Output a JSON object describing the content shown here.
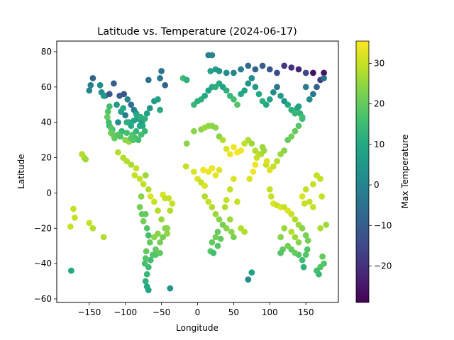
{
  "chart_data": {
    "type": "scatter",
    "title": "Latitude vs. Temperature (2024-06-17)",
    "xlabel": "Longitude",
    "ylabel": "Latitude",
    "xlim": [
      -195,
      195
    ],
    "ylim": [
      -62,
      86
    ],
    "xticks": [
      -150,
      -100,
      -50,
      0,
      50,
      100,
      150
    ],
    "yticks": [
      -60,
      -40,
      -20,
      0,
      20,
      40,
      60,
      80
    ],
    "colorbar": {
      "label": "Max Temperature",
      "colormap": "viridis",
      "min": -29,
      "max": 35.5,
      "ticks": [
        -20,
        -10,
        0,
        10,
        20,
        30
      ]
    },
    "grid": false,
    "legend": "none",
    "points": [
      [
        -145,
        65,
        -8
      ],
      [
        -148,
        61,
        -2
      ],
      [
        -150,
        58,
        0
      ],
      [
        -135,
        61,
        2
      ],
      [
        -133,
        57,
        3
      ],
      [
        -128,
        55,
        -5
      ],
      [
        -122,
        56,
        -12
      ],
      [
        -116,
        62,
        -10
      ],
      [
        -108,
        55,
        -10
      ],
      [
        -102,
        56,
        -12
      ],
      [
        -97,
        53,
        0
      ],
      [
        -92,
        50,
        -5
      ],
      [
        -88,
        47,
        -2
      ],
      [
        -85,
        45,
        5
      ],
      [
        -82,
        42,
        8
      ],
      [
        -95,
        40,
        10
      ],
      [
        -100,
        44,
        -3
      ],
      [
        -110,
        40,
        2
      ],
      [
        -118,
        36,
        15
      ],
      [
        -122,
        38,
        12
      ],
      [
        -125,
        43,
        20
      ],
      [
        -120,
        34,
        22
      ],
      [
        -115,
        31,
        20
      ],
      [
        -107,
        32,
        18
      ],
      [
        -100,
        30,
        24
      ],
      [
        -95,
        29,
        25
      ],
      [
        -90,
        33,
        18
      ],
      [
        -85,
        35,
        14
      ],
      [
        -80,
        38,
        10
      ],
      [
        -77,
        40,
        6
      ],
      [
        -73,
        42,
        12
      ],
      [
        -70,
        45,
        8
      ],
      [
        -66,
        48,
        5
      ],
      [
        -60,
        52,
        6
      ],
      [
        -55,
        53,
        8
      ],
      [
        -52,
        47,
        10
      ],
      [
        -68,
        64,
        -5
      ],
      [
        -52,
        65,
        -3
      ],
      [
        -45,
        61,
        -8
      ],
      [
        -50,
        69,
        -4
      ],
      [
        -160,
        22,
        28
      ],
      [
        -157,
        20,
        28
      ],
      [
        -155,
        19,
        26
      ],
      [
        -110,
        23,
        28
      ],
      [
        -103,
        20,
        28
      ],
      [
        -98,
        18,
        28
      ],
      [
        -92,
        16,
        27
      ],
      [
        -85,
        14,
        30
      ],
      [
        -87,
        10,
        30
      ],
      [
        -80,
        8,
        30
      ],
      [
        -75,
        5,
        29
      ],
      [
        -72,
        10,
        26
      ],
      [
        -68,
        2,
        28
      ],
      [
        -65,
        -2,
        32
      ],
      [
        -60,
        -5,
        30
      ],
      [
        -55,
        -10,
        28
      ],
      [
        -48,
        -1,
        32
      ],
      [
        -50,
        -15,
        26
      ],
      [
        -45,
        -20,
        24
      ],
      [
        -42,
        -23,
        25
      ],
      [
        -48,
        -25,
        22
      ],
      [
        -52,
        -28,
        22
      ],
      [
        -58,
        -32,
        20
      ],
      [
        -62,
        -35,
        18
      ],
      [
        -65,
        -38,
        16
      ],
      [
        -68,
        -42,
        15
      ],
      [
        -70,
        -46,
        14
      ],
      [
        -72,
        -50,
        12
      ],
      [
        -70,
        -53,
        10
      ],
      [
        -68,
        -55,
        9
      ],
      [
        -72,
        -12,
        20
      ],
      [
        -75,
        -16,
        22
      ],
      [
        -70,
        -20,
        18
      ],
      [
        -68,
        -24,
        16
      ],
      [
        -66,
        -28,
        20
      ],
      [
        -71,
        -33,
        20
      ],
      [
        -72,
        -37,
        18
      ],
      [
        -73,
        -40,
        17
      ],
      [
        -38,
        -54,
        4
      ],
      [
        -175,
        -44,
        10
      ],
      [
        -172,
        -9,
        30
      ],
      [
        -170,
        -14,
        30
      ],
      [
        -176,
        -19,
        30
      ],
      [
        -150,
        -17,
        30
      ],
      [
        -145,
        -20,
        28
      ],
      [
        -130,
        -25,
        28
      ],
      [
        -15,
        28,
        24
      ],
      [
        -16,
        15,
        30
      ],
      [
        -5,
        12,
        32
      ],
      [
        0,
        8,
        32
      ],
      [
        5,
        6,
        30
      ],
      [
        10,
        4,
        32
      ],
      [
        8,
        13,
        34
      ],
      [
        15,
        12,
        34
      ],
      [
        20,
        14,
        34
      ],
      [
        25,
        10,
        33
      ],
      [
        30,
        13,
        32
      ],
      [
        -5,
        35,
        24
      ],
      [
        5,
        36,
        24
      ],
      [
        10,
        37,
        26
      ],
      [
        15,
        38,
        25
      ],
      [
        20,
        38,
        24
      ],
      [
        25,
        37,
        24
      ],
      [
        30,
        32,
        24
      ],
      [
        35,
        30,
        28
      ],
      [
        40,
        25,
        32
      ],
      [
        45,
        22,
        34
      ],
      [
        50,
        26,
        34
      ],
      [
        55,
        23,
        35
      ],
      [
        60,
        24,
        34
      ],
      [
        65,
        28,
        30
      ],
      [
        70,
        30,
        28
      ],
      [
        75,
        28,
        26
      ],
      [
        80,
        24,
        28
      ],
      [
        85,
        22,
        30
      ],
      [
        90,
        26,
        26
      ],
      [
        95,
        16,
        30
      ],
      [
        100,
        13,
        32
      ],
      [
        105,
        15,
        30
      ],
      [
        110,
        18,
        28
      ],
      [
        115,
        22,
        26
      ],
      [
        120,
        24,
        24
      ],
      [
        125,
        30,
        20
      ],
      [
        130,
        32,
        22
      ],
      [
        135,
        35,
        20
      ],
      [
        140,
        38,
        18
      ],
      [
        145,
        42,
        14
      ],
      [
        142,
        45,
        12
      ],
      [
        138,
        48,
        10
      ],
      [
        -5,
        50,
        14
      ],
      [
        0,
        52,
        12
      ],
      [
        5,
        53,
        12
      ],
      [
        10,
        55,
        10
      ],
      [
        15,
        58,
        8
      ],
      [
        20,
        60,
        10
      ],
      [
        25,
        60,
        12
      ],
      [
        30,
        62,
        10
      ],
      [
        35,
        60,
        8
      ],
      [
        40,
        58,
        12
      ],
      [
        45,
        55,
        14
      ],
      [
        50,
        53,
        16
      ],
      [
        55,
        50,
        18
      ],
      [
        60,
        56,
        10
      ],
      [
        65,
        58,
        8
      ],
      [
        70,
        62,
        5
      ],
      [
        75,
        65,
        2
      ],
      [
        80,
        60,
        6
      ],
      [
        85,
        56,
        10
      ],
      [
        90,
        52,
        12
      ],
      [
        95,
        50,
        10
      ],
      [
        100,
        53,
        8
      ],
      [
        105,
        57,
        2
      ],
      [
        110,
        60,
        -4
      ],
      [
        115,
        55,
        6
      ],
      [
        120,
        52,
        4
      ],
      [
        125,
        50,
        10
      ],
      [
        130,
        47,
        12
      ],
      [
        135,
        45,
        14
      ],
      [
        140,
        49,
        8
      ],
      [
        145,
        43,
        16
      ],
      [
        150,
        60,
        -2
      ],
      [
        155,
        53,
        2
      ],
      [
        160,
        56,
        -4
      ],
      [
        165,
        60,
        -10
      ],
      [
        170,
        64,
        -18
      ],
      [
        175,
        68,
        -25
      ],
      [
        -20,
        65,
        15
      ],
      [
        -15,
        64,
        12
      ],
      [
        18,
        69,
        8
      ],
      [
        25,
        70,
        6
      ],
      [
        30,
        69,
        4
      ],
      [
        40,
        68,
        2
      ],
      [
        50,
        68,
        0
      ],
      [
        60,
        70,
        -2
      ],
      [
        70,
        72,
        -6
      ],
      [
        80,
        70,
        -8
      ],
      [
        90,
        72,
        -10
      ],
      [
        100,
        70,
        -12
      ],
      [
        110,
        68,
        -14
      ],
      [
        120,
        72,
        -18
      ],
      [
        130,
        71,
        -20
      ],
      [
        140,
        70,
        -22
      ],
      [
        150,
        68,
        -15
      ],
      [
        160,
        68,
        -26
      ],
      [
        175,
        65,
        -5
      ],
      [
        15,
        78,
        -2
      ],
      [
        20,
        78,
        0
      ],
      [
        10,
        -2,
        28
      ],
      [
        15,
        -5,
        30
      ],
      [
        20,
        -8,
        28
      ],
      [
        25,
        -12,
        26
      ],
      [
        30,
        -15,
        24
      ],
      [
        35,
        -18,
        22
      ],
      [
        28,
        -22,
        20
      ],
      [
        25,
        -25,
        22
      ],
      [
        20,
        -28,
        20
      ],
      [
        18,
        -33,
        18
      ],
      [
        22,
        -34,
        16
      ],
      [
        28,
        -30,
        18
      ],
      [
        32,
        -26,
        20
      ],
      [
        40,
        -20,
        24
      ],
      [
        45,
        -15,
        26
      ],
      [
        47,
        -22,
        24
      ],
      [
        50,
        -25,
        22
      ],
      [
        38,
        -8,
        28
      ],
      [
        40,
        -4,
        30
      ],
      [
        45,
        2,
        30
      ],
      [
        50,
        8,
        32
      ],
      [
        55,
        -5,
        30
      ],
      [
        60,
        -20,
        28
      ],
      [
        65,
        -22,
        28
      ],
      [
        70,
        -49,
        2
      ],
      [
        75,
        -45,
        8
      ],
      [
        72,
        8,
        32
      ],
      [
        77,
        12,
        34
      ],
      [
        80,
        16,
        34
      ],
      [
        82,
        20,
        30
      ],
      [
        88,
        22,
        28
      ],
      [
        92,
        24,
        26
      ],
      [
        96,
        18,
        32
      ],
      [
        100,
        2,
        30
      ],
      [
        102,
        -2,
        30
      ],
      [
        105,
        -6,
        32
      ],
      [
        110,
        -7,
        30
      ],
      [
        115,
        -8,
        32
      ],
      [
        120,
        -8,
        30
      ],
      [
        125,
        -10,
        32
      ],
      [
        130,
        -12,
        30
      ],
      [
        135,
        -15,
        28
      ],
      [
        140,
        -18,
        26
      ],
      [
        145,
        -20,
        24
      ],
      [
        150,
        -24,
        22
      ],
      [
        153,
        -27,
        22
      ],
      [
        152,
        -32,
        18
      ],
      [
        150,
        -35,
        18
      ],
      [
        145,
        -38,
        15
      ],
      [
        140,
        -35,
        18
      ],
      [
        135,
        -34,
        20
      ],
      [
        130,
        -32,
        20
      ],
      [
        125,
        -30,
        22
      ],
      [
        118,
        -32,
        20
      ],
      [
        115,
        -34,
        18
      ],
      [
        115,
        -25,
        24
      ],
      [
        120,
        -20,
        26
      ],
      [
        130,
        -22,
        28
      ],
      [
        135,
        -25,
        26
      ],
      [
        140,
        -28,
        24
      ],
      [
        147,
        -42,
        12
      ],
      [
        170,
        -42,
        18
      ],
      [
        173,
        -36,
        20
      ],
      [
        175,
        -40,
        18
      ],
      [
        168,
        -46,
        14
      ],
      [
        165,
        -44,
        16
      ],
      [
        178,
        -18,
        26
      ],
      [
        170,
        -20,
        28
      ],
      [
        160,
        -8,
        30
      ],
      [
        155,
        -5,
        30
      ],
      [
        148,
        -6,
        30
      ],
      [
        145,
        -2,
        32
      ],
      [
        150,
        2,
        30
      ],
      [
        160,
        5,
        30
      ],
      [
        165,
        10,
        30
      ],
      [
        170,
        8,
        30
      ],
      [
        172,
        -2,
        30
      ],
      [
        -78,
        -2,
        24
      ],
      [
        -80,
        -8,
        22
      ],
      [
        -77,
        -12,
        20
      ],
      [
        -60,
        -25,
        24
      ],
      [
        -58,
        -35,
        18
      ],
      [
        -42,
        -20,
        24
      ],
      [
        -38,
        -10,
        28
      ],
      [
        -35,
        -6,
        30
      ],
      [
        -40,
        -3,
        30
      ],
      [
        -45,
        -3,
        30
      ],
      [
        -52,
        -34,
        20
      ],
      [
        -55,
        -23,
        24
      ],
      [
        -130,
        55,
        6
      ],
      [
        -112,
        50,
        6
      ],
      [
        -106,
        46,
        8
      ],
      [
        -103,
        48,
        10
      ],
      [
        -98,
        40,
        12
      ],
      [
        -92,
        38,
        10
      ],
      [
        -88,
        41,
        8
      ],
      [
        -84,
        44,
        10
      ],
      [
        -79,
        43,
        12
      ],
      [
        -76,
        38,
        10
      ],
      [
        -73,
        35,
        14
      ],
      [
        -78,
        33,
        16
      ],
      [
        -82,
        30,
        16
      ],
      [
        -86,
        31,
        16
      ],
      [
        -89,
        30,
        18
      ],
      [
        -92,
        31,
        18
      ],
      [
        -98,
        34,
        16
      ],
      [
        -105,
        35,
        14
      ],
      [
        -110,
        33,
        18
      ],
      [
        -117,
        33,
        20
      ],
      [
        -120,
        37,
        18
      ],
      [
        -123,
        40,
        16
      ],
      [
        -124,
        46,
        18
      ],
      [
        -122,
        49,
        16
      ]
    ]
  }
}
